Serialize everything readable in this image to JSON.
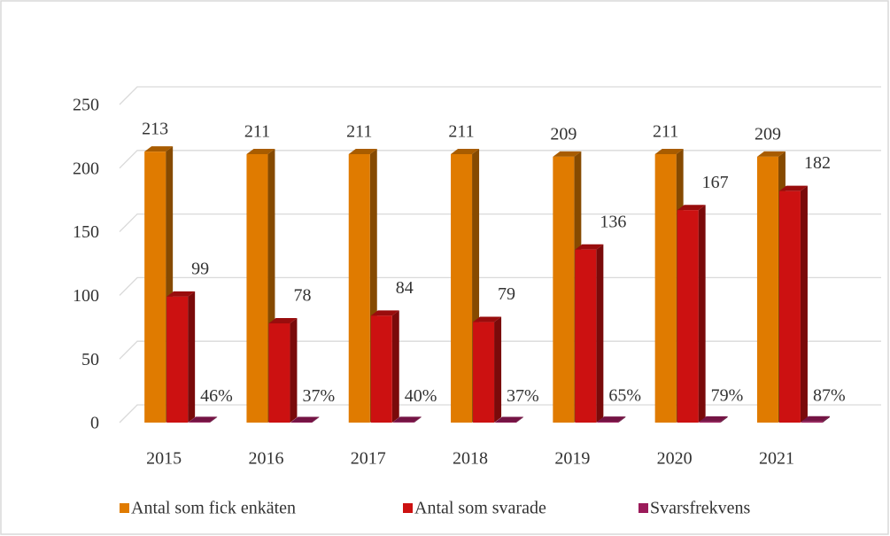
{
  "chart_data": {
    "type": "bar",
    "categories": [
      "2015",
      "2016",
      "2017",
      "2018",
      "2019",
      "2020",
      "2021"
    ],
    "series": [
      {
        "name": "Antal som fick enkäten",
        "color": "#e07b00",
        "values": [
          213,
          211,
          211,
          211,
          209,
          211,
          209
        ]
      },
      {
        "name": "Antal som svarade",
        "color": "#cc1111",
        "values": [
          99,
          78,
          84,
          79,
          136,
          167,
          182
        ]
      },
      {
        "name": "Svarsfrekvens",
        "color": "#9b1b5a",
        "values": [
          0.46,
          0.37,
          0.4,
          0.37,
          0.65,
          0.79,
          0.87
        ],
        "value_labels": [
          "46%",
          "37%",
          "40%",
          "37%",
          "65%",
          "79%",
          "87%"
        ]
      }
    ],
    "ylim": [
      0,
      250
    ],
    "yticks": [
      0,
      50,
      100,
      150,
      200,
      250
    ],
    "grid": true,
    "legend": "bottom"
  }
}
